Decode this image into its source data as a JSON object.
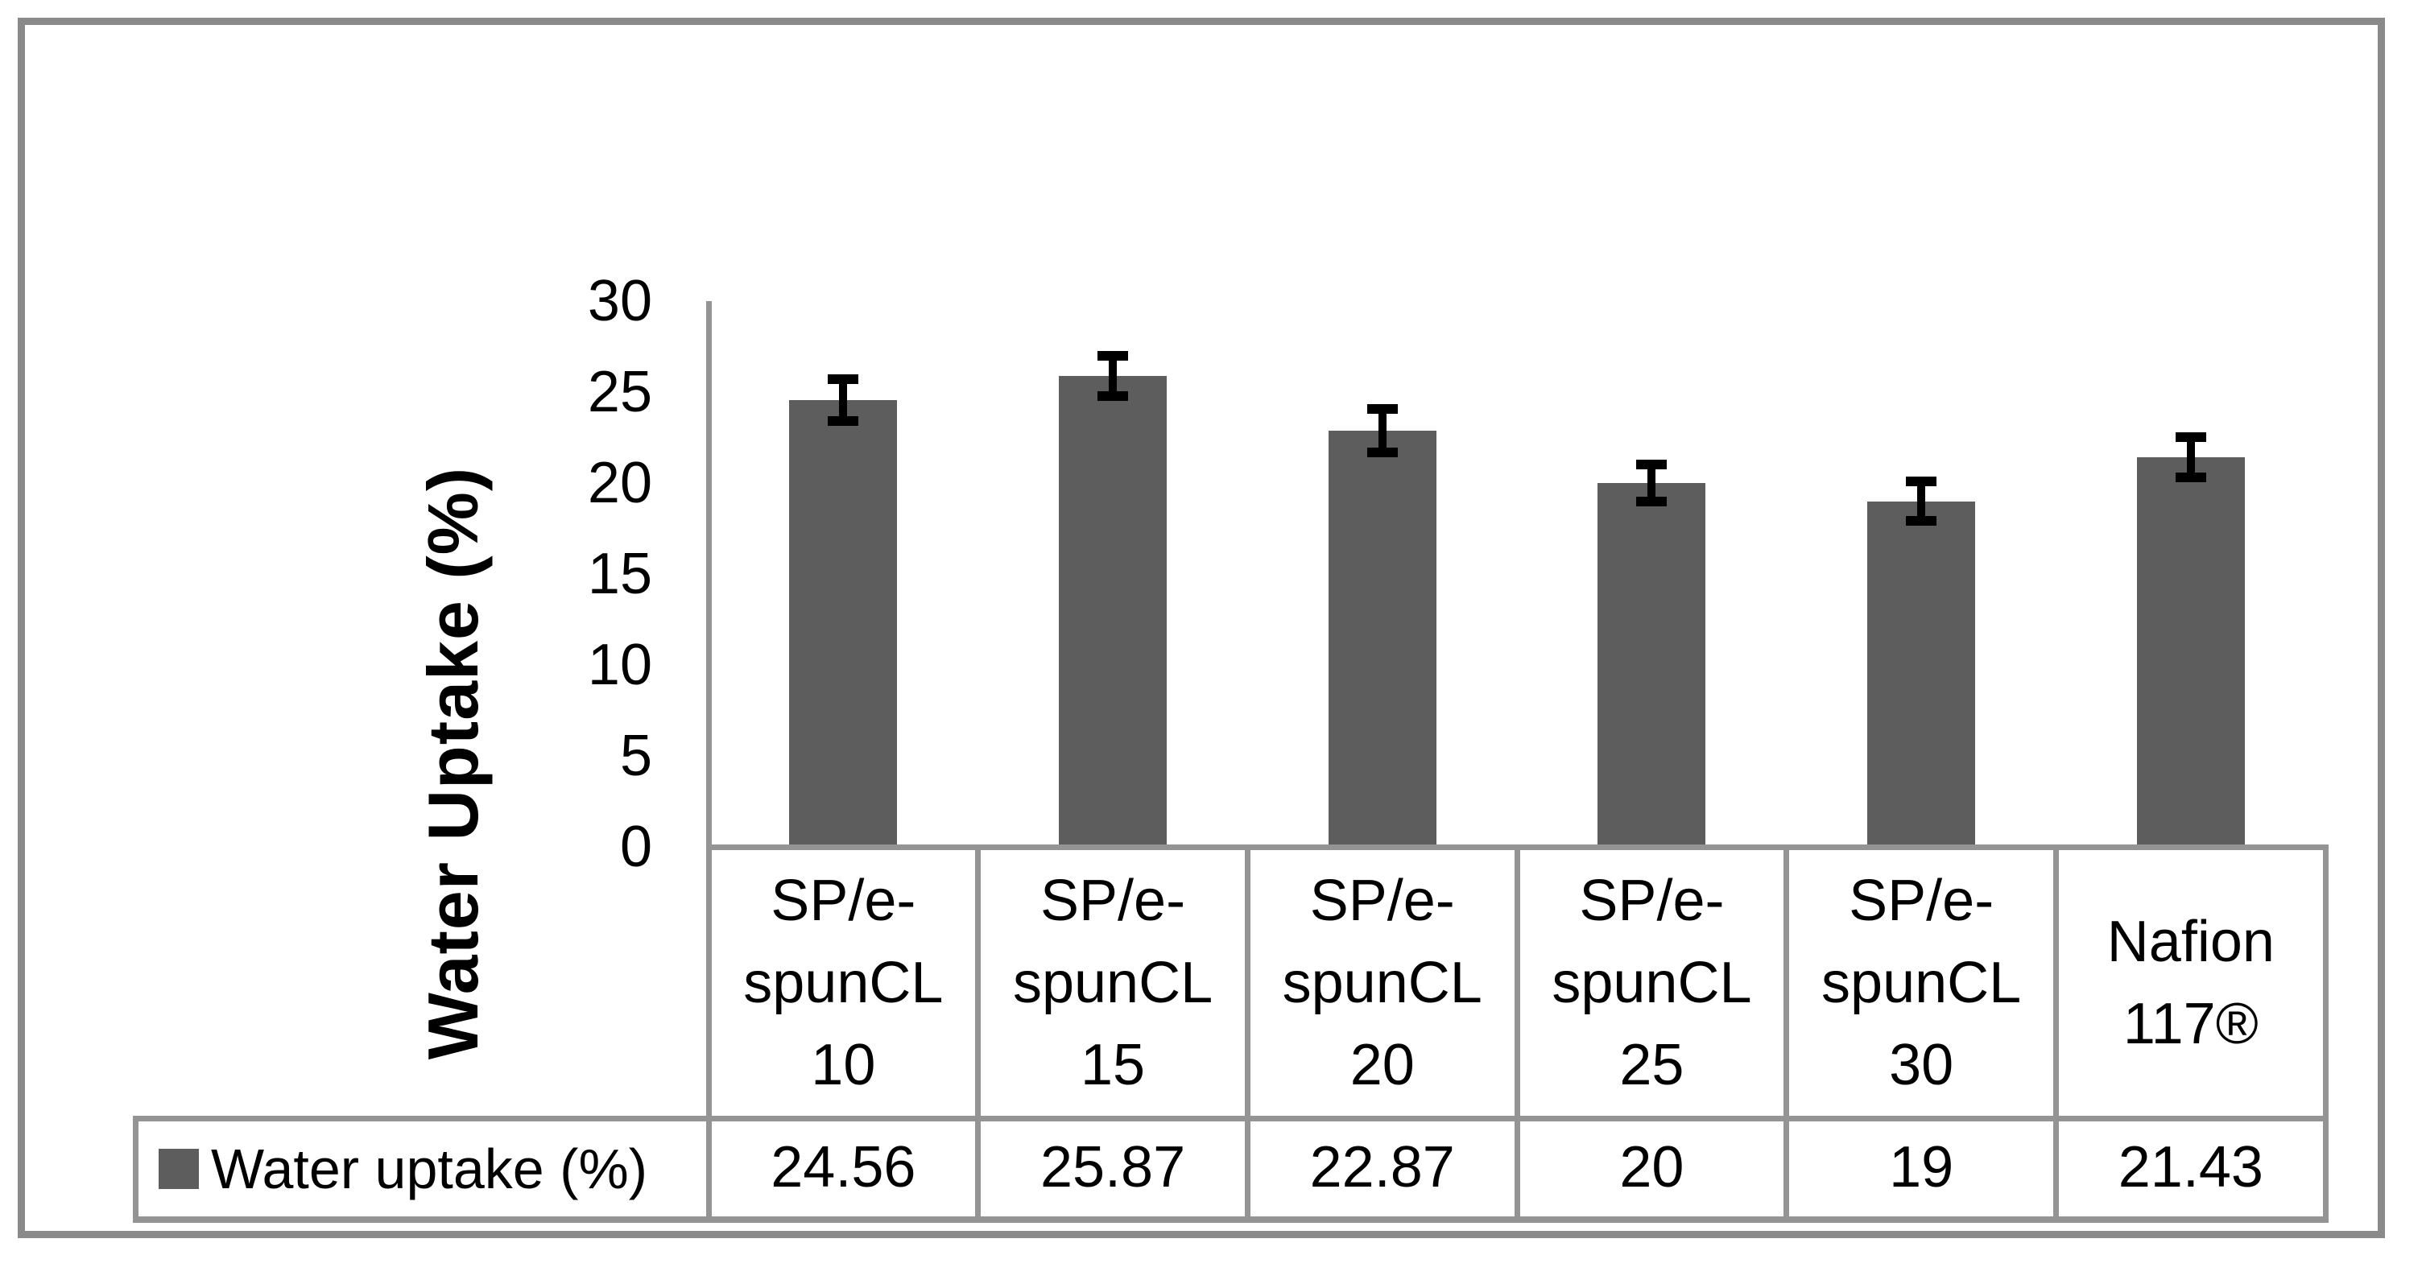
{
  "chart_data": {
    "type": "bar",
    "title": "",
    "ylabel": "Water Uptake (%)",
    "xlabel": "",
    "categories": [
      "SP/e-spunCL 10",
      "SP/e-spunCL 15",
      "SP/e-spunCL 20",
      "SP/e-spunCL 25",
      "SP/e-spunCL 30",
      "Nafion 117®"
    ],
    "category_lines": [
      [
        "SP/e-",
        "spunCL",
        "10"
      ],
      [
        "SP/e-",
        "spunCL",
        "15"
      ],
      [
        "SP/e-",
        "spunCL",
        "20"
      ],
      [
        "SP/e-",
        "spunCL",
        "25"
      ],
      [
        "SP/e-",
        "spunCL",
        "30"
      ],
      [
        "Nafion",
        "117®"
      ]
    ],
    "series_name": "Water uptake (%)",
    "values": [
      24.56,
      25.87,
      22.87,
      20,
      19,
      21.43
    ],
    "value_labels": [
      "24.56",
      "25.87",
      "22.87",
      "20",
      "19",
      "21.43"
    ],
    "errors": [
      1.15,
      1.1,
      1.2,
      1.0,
      1.1,
      1.1
    ],
    "yticks": [
      "0",
      "5",
      "10",
      "15",
      "20",
      "25",
      "30"
    ],
    "ylim": [
      0,
      30
    ],
    "grid": false,
    "legend_label": "Water uptake (%)",
    "legend_position": "bottom-table",
    "colors": {
      "bar_fill": "#5d5d5d",
      "error_bar": "#000000",
      "axis_line": "#949494",
      "table_border": "#949494",
      "outer_frame": "#8a8a8a",
      "text": "#000000",
      "background": "#ffffff"
    }
  }
}
